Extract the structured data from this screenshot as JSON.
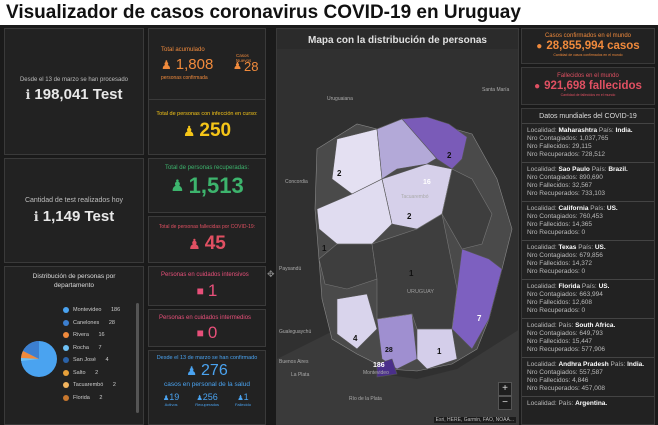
{
  "page_title": "Visualizador de casos coronavirus COVID-19 en Uruguay",
  "tests_processed": {
    "label": "Desde el 13 de marzo se han procesado",
    "value": "198,041 Test"
  },
  "tests_today": {
    "label": "Cantidad de test realizados hoy",
    "value": "1,149 Test"
  },
  "distribution": {
    "title": "Distribución de personas por departamento",
    "items": [
      {
        "name": "Montevideo",
        "value": "186",
        "color": "#4aa3f0"
      },
      {
        "name": "Canelones",
        "value": "28",
        "color": "#3c7fd0"
      },
      {
        "name": "Rivera",
        "value": "16",
        "color": "#f08a3c"
      },
      {
        "name": "Rocha",
        "value": "7",
        "color": "#6fc1f5"
      },
      {
        "name": "San José",
        "value": "4",
        "color": "#2a62a8"
      },
      {
        "name": "Salto",
        "value": "2",
        "color": "#e6a03a"
      },
      {
        "name": "Tacuarembó",
        "value": "2",
        "color": "#f2b45e"
      },
      {
        "name": "Florida",
        "value": "2",
        "color": "#c7772e"
      }
    ]
  },
  "total": {
    "label": "Total acumulado",
    "value": "1,808",
    "sub": "personas confirmada"
  },
  "new_cases": {
    "label": "Casos Nuevos",
    "value": "28"
  },
  "active": {
    "label": "Total de personas con infección en curso:",
    "value": "250"
  },
  "recovered": {
    "label": "Total de personas recuperadas:",
    "value": "1,513"
  },
  "deceased": {
    "label": "Total de personas fallecidas por COVID-19:",
    "value": "45"
  },
  "icu": {
    "label": "Personas en cuidados intensivos",
    "value": "1"
  },
  "intermediate": {
    "label": "Personas en cuidados intermedios",
    "value": "0"
  },
  "health_staff": {
    "label": "Desde el 13 de marzo se han confirmado",
    "value": "276",
    "sub": "casos en personal de la salud",
    "stats": [
      {
        "value": "19",
        "label": "Activos"
      },
      {
        "value": "256",
        "label": "Recuperados"
      },
      {
        "value": "1",
        "label": "Fallecido"
      }
    ]
  },
  "map": {
    "title": "Mapa con la distribución de personas",
    "numbers": [
      "2",
      "16",
      "2",
      "2",
      "1",
      "1",
      "7",
      "4",
      "28",
      "1",
      "186"
    ],
    "labels": [
      "Uruguaiana",
      "Santa María",
      "Concordia",
      "Tacuarembó",
      "Paysandú",
      "URUGUAY",
      "Gualeguaychú",
      "Buenos Aires",
      "La Plata",
      "Montevideo",
      "Río de la Plata"
    ],
    "attribution": "Esri, HERE, Garmin, FAO, NOAA..."
  },
  "world_confirmed": {
    "label": "Casos confirmados en el mundo",
    "value": "28,855,994 casos",
    "sub": "Cantidad de casos confirmados en el mundo"
  },
  "world_deceased": {
    "label": "Fallecidos en el mundo",
    "value": "921,698 fallecidos",
    "sub": "Cantidad de fallecidos en el mundo"
  },
  "world_list": {
    "title": "Datos mundiales del COVID-19",
    "items": [
      {
        "loc": "Maharashtra",
        "country": "India.",
        "cont": "1,037,765",
        "fall": "29,115",
        "rec": "728,512"
      },
      {
        "loc": "Sao Paulo",
        "country": "Brazil.",
        "cont": "890,690",
        "fall": "32,567",
        "rec": "733,103"
      },
      {
        "loc": "California",
        "country": "US.",
        "cont": "760,453",
        "fall": "14,365",
        "rec": "0"
      },
      {
        "loc": "Texas",
        "country": "US.",
        "cont": "679,856",
        "fall": "14,372",
        "rec": "0"
      },
      {
        "loc": "Florida",
        "country": "US.",
        "cont": "663,994",
        "fall": "12,608",
        "rec": "0"
      },
      {
        "loc": "",
        "country": "South Africa.",
        "cont": "649,793",
        "fall": "15,447",
        "rec": "577,906"
      },
      {
        "loc": "Andhra Pradesh",
        "country": "India.",
        "cont": "557,587",
        "fall": "4,846",
        "rec": "457,008"
      },
      {
        "loc": "",
        "country": "Argentina.",
        "cont": "",
        "fall": "",
        "rec": ""
      }
    ],
    "labels": {
      "loc": "Localidad:",
      "country": "País:",
      "cont": "Nro Contagiados:",
      "fall": "Nro Fallecidos:",
      "rec": "Nro Recuperados:"
    }
  }
}
